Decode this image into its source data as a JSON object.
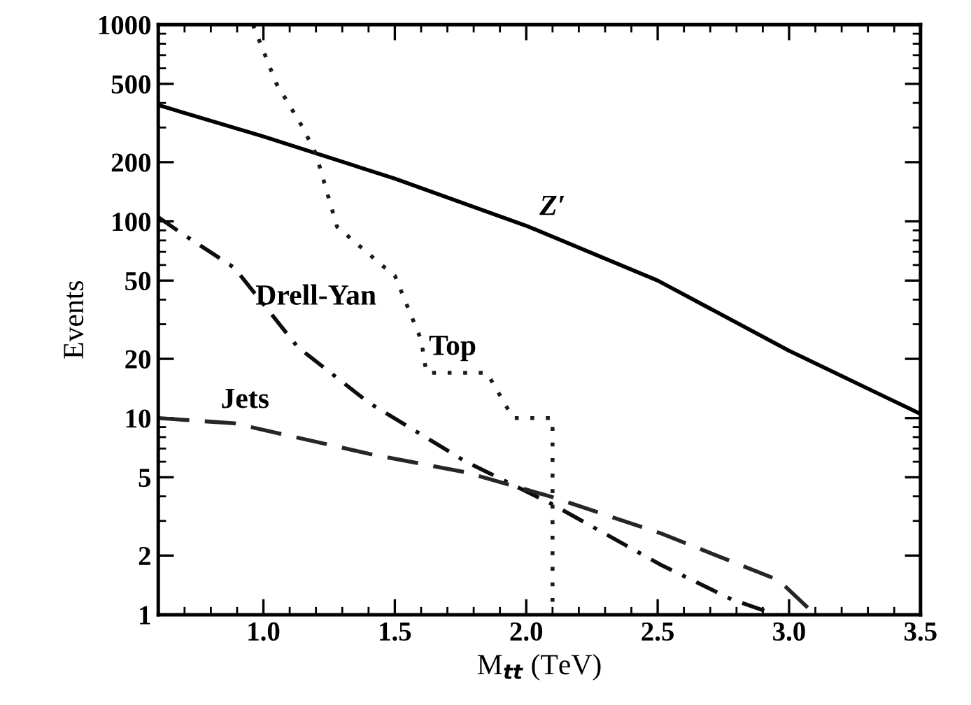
{
  "chart_data": {
    "type": "line",
    "xlabel": "M$_{tt}$ (TeV)",
    "ylabel": "Events",
    "log": "y",
    "grid": false,
    "legend": false,
    "marker": "none",
    "xlim": [
      0.6,
      3.5
    ],
    "xticks": [
      {
        "value": 1.0,
        "label": "1.0"
      },
      1.5,
      {
        "value": 2.0,
        "label": "2.0"
      },
      2.5,
      {
        "value": 3.0,
        "label": "3.0"
      },
      3.5
    ],
    "ylim": [
      1,
      1000
    ],
    "yticks": [
      1,
      2,
      5,
      10,
      20,
      50,
      100,
      200,
      500,
      1000
    ],
    "series": [
      {
        "name": "Z′",
        "color": "#000000",
        "line_style": "solid",
        "x": [
          0.6,
          1.0,
          1.5,
          2.0,
          2.5,
          3.0,
          3.5
        ],
        "values": [
          390,
          270,
          165,
          95,
          50,
          22,
          10.5
        ]
      },
      {
        "name": "Top",
        "color": "#1a1a1a",
        "line_style": "dotted",
        "x": [
          0.96,
          1.05,
          1.15,
          1.2,
          1.28,
          1.45,
          1.5,
          1.6,
          1.62,
          1.85,
          1.95,
          2.1,
          2.1
        ],
        "values": [
          1000,
          500,
          300,
          220,
          94,
          60,
          53,
          25,
          17,
          17,
          10,
          10,
          1
        ]
      },
      {
        "name": "Drell-Yan",
        "color": "#0d0d0d",
        "line_style": "dashdot",
        "x": [
          0.6,
          0.7,
          0.89,
          1.13,
          1.4,
          1.77,
          2.09,
          2.51,
          2.78,
          2.95
        ],
        "values": [
          105,
          85,
          58,
          23,
          12,
          6,
          3.7,
          1.8,
          1.2,
          1.0
        ]
      },
      {
        "name": "Jets",
        "color": "#262626",
        "line_style": "dashed",
        "x": [
          0.6,
          0.89,
          1.42,
          1.77,
          2.09,
          2.51,
          2.96,
          3.1
        ],
        "values": [
          10,
          9.4,
          6.5,
          5.3,
          4.0,
          2.6,
          1.5,
          1.0
        ]
      }
    ]
  }
}
